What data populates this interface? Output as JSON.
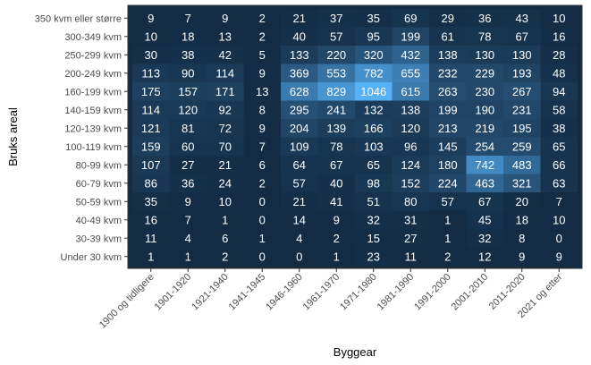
{
  "chart_data": {
    "type": "heatmap",
    "title": "",
    "xlabel": "Byggear",
    "ylabel": "Bruks areal",
    "x_categories": [
      "1900 og tidligere",
      "1901-1920",
      "1921-1940",
      "1941-1945",
      "1946-1960",
      "1961-1970",
      "1971-1980",
      "1981-1990",
      "1991-2000",
      "2001-2010",
      "2011-2020",
      "2021 og etter"
    ],
    "y_categories": [
      "350 kvm eller større",
      "300-349 kvm",
      "250-299 kvm",
      "200-249 kvm",
      "160-199 kvm",
      "140-159 kvm",
      "120-139 kvm",
      "100-119 kvm",
      "80-99 kvm",
      "60-79 kvm",
      "50-59 kvm",
      "40-49 kvm",
      "30-39 kvm",
      "Under 30 kvm"
    ],
    "values": [
      [
        9,
        7,
        9,
        2,
        21,
        37,
        35,
        69,
        29,
        36,
        43,
        10
      ],
      [
        10,
        18,
        13,
        2,
        40,
        57,
        95,
        199,
        61,
        78,
        67,
        16
      ],
      [
        30,
        38,
        42,
        5,
        133,
        220,
        320,
        432,
        138,
        130,
        130,
        28
      ],
      [
        113,
        90,
        114,
        9,
        369,
        553,
        782,
        655,
        232,
        229,
        193,
        48
      ],
      [
        175,
        157,
        171,
        13,
        628,
        829,
        1046,
        615,
        263,
        230,
        267,
        94
      ],
      [
        114,
        120,
        92,
        8,
        295,
        241,
        132,
        138,
        199,
        190,
        231,
        58
      ],
      [
        121,
        81,
        72,
        9,
        204,
        139,
        166,
        120,
        213,
        219,
        195,
        38
      ],
      [
        159,
        60,
        70,
        7,
        109,
        78,
        103,
        96,
        145,
        254,
        259,
        65
      ],
      [
        107,
        27,
        21,
        6,
        64,
        67,
        65,
        124,
        180,
        742,
        483,
        66
      ],
      [
        86,
        36,
        24,
        2,
        57,
        40,
        98,
        152,
        224,
        463,
        321,
        63
      ],
      [
        35,
        9,
        10,
        0,
        21,
        41,
        51,
        80,
        57,
        67,
        20,
        7
      ],
      [
        16,
        7,
        1,
        0,
        14,
        9,
        32,
        31,
        1,
        45,
        18,
        10
      ],
      [
        11,
        4,
        6,
        1,
        4,
        2,
        15,
        27,
        1,
        32,
        8,
        0
      ],
      [
        1,
        1,
        2,
        0,
        0,
        1,
        23,
        11,
        2,
        12,
        9,
        9
      ]
    ],
    "color_low": "#132b43",
    "color_high": "#56b1f7",
    "value_range": [
      0,
      1046
    ],
    "legend": "none",
    "grid": false
  }
}
